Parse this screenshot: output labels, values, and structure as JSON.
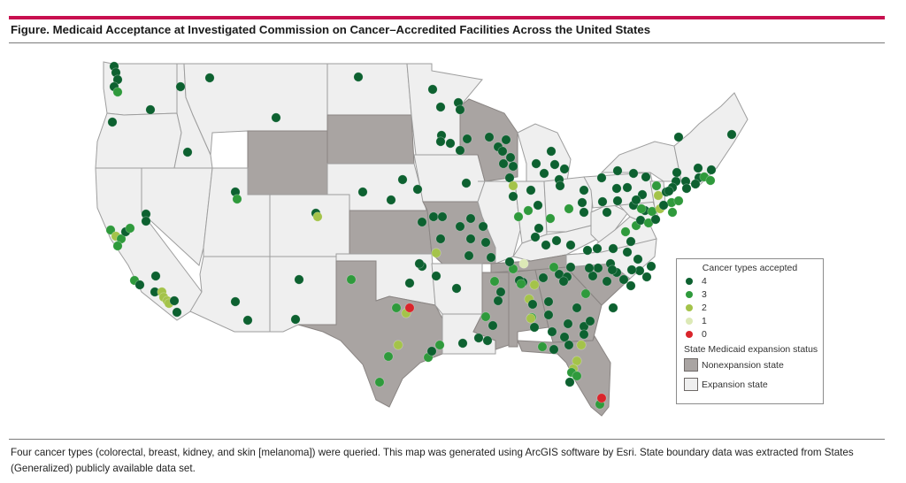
{
  "figure": {
    "title": "Figure. Medicaid Acceptance at Investigated Commission on Cancer–Accredited Facilities Across the United States",
    "caption": "Four cancer types (colorectal, breast, kidney, and skin [melanoma]) were queried. This map was generated using ArcGIS software by Esri. State boundary data was extracted from States (Generalized) publicly available data set.",
    "accent_color": "#c8104f"
  },
  "legend": {
    "cancer_title": "Cancer types accepted",
    "cancer_levels": [
      {
        "label": "4",
        "color": "#0d6130"
      },
      {
        "label": "3",
        "color": "#2f9a3c"
      },
      {
        "label": "2",
        "color": "#a4c34a"
      },
      {
        "label": "1",
        "color": "#dce9b6"
      },
      {
        "label": "0",
        "color": "#d9252b"
      }
    ],
    "status_title": "State Medicaid expansion status",
    "status_items": [
      {
        "label": "Nonexpansion state",
        "color": "#a9a4a2"
      },
      {
        "label": "Expansion state",
        "color": "#efefef"
      }
    ]
  },
  "map_data": {
    "nonexpansion_states": [
      "Wyoming",
      "South Dakota",
      "Kansas",
      "Missouri",
      "Wisconsin",
      "Texas",
      "Tennessee",
      "Mississippi",
      "Alabama",
      "Georgia",
      "South Carolina",
      "Florida"
    ]
  }
}
